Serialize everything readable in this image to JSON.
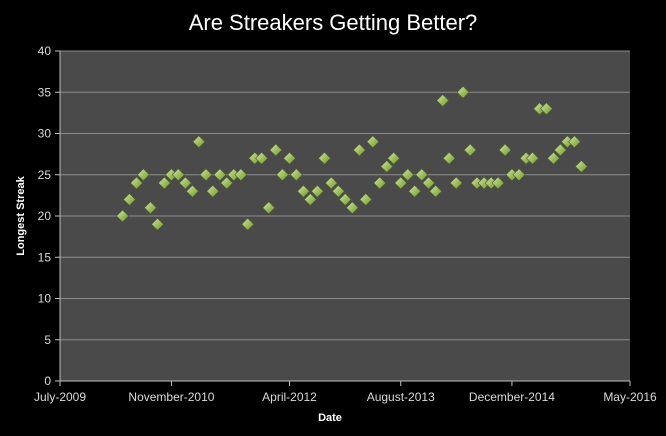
{
  "chart_data": {
    "type": "scatter",
    "title": "Are Streakers Getting Better?",
    "xlabel": "Date",
    "ylabel": "Longest Streak",
    "ylim": [
      0,
      40
    ],
    "yticks": [
      "0",
      "5",
      "10",
      "15",
      "20",
      "25",
      "30",
      "35",
      "40"
    ],
    "xlim": [
      "2009-07-01",
      "2016-05-01"
    ],
    "xticks": [
      {
        "date": "2009-07-01",
        "label": "July-2009"
      },
      {
        "date": "2010-11-01",
        "label": "November-2010"
      },
      {
        "date": "2012-04-01",
        "label": "April-2012"
      },
      {
        "date": "2013-08-01",
        "label": "August-2013"
      },
      {
        "date": "2014-12-01",
        "label": "December-2014"
      },
      {
        "date": "2016-05-01",
        "label": "May-2016"
      }
    ],
    "grid": true,
    "legend": false,
    "colors": {
      "background": "#000000",
      "plot_area": "#4a4a4a",
      "gridline": "#8c8c8c",
      "marker_fill": "#9bbb59",
      "marker_highlight": "#d7e4bd",
      "marker_edge": "#4f6228",
      "text": "#ffffff",
      "tick_text": "#d9d9d9"
    },
    "points": [
      {
        "x": "2010-04-01",
        "y": 20
      },
      {
        "x": "2010-05-01",
        "y": 22
      },
      {
        "x": "2010-06-01",
        "y": 24
      },
      {
        "x": "2010-07-01",
        "y": 25
      },
      {
        "x": "2010-08-01",
        "y": 21
      },
      {
        "x": "2010-09-01",
        "y": 19
      },
      {
        "x": "2010-10-01",
        "y": 24
      },
      {
        "x": "2010-11-01",
        "y": 25
      },
      {
        "x": "2010-12-01",
        "y": 25
      },
      {
        "x": "2011-01-01",
        "y": 24
      },
      {
        "x": "2011-02-01",
        "y": 23
      },
      {
        "x": "2011-03-01",
        "y": 29
      },
      {
        "x": "2011-04-01",
        "y": 25
      },
      {
        "x": "2011-05-01",
        "y": 23
      },
      {
        "x": "2011-06-01",
        "y": 25
      },
      {
        "x": "2011-07-01",
        "y": 24
      },
      {
        "x": "2011-08-01",
        "y": 25
      },
      {
        "x": "2011-09-01",
        "y": 25
      },
      {
        "x": "2011-10-01",
        "y": 19
      },
      {
        "x": "2011-11-01",
        "y": 27
      },
      {
        "x": "2011-12-01",
        "y": 27
      },
      {
        "x": "2012-01-01",
        "y": 21
      },
      {
        "x": "2012-02-01",
        "y": 28
      },
      {
        "x": "2012-03-01",
        "y": 25
      },
      {
        "x": "2012-04-01",
        "y": 27
      },
      {
        "x": "2012-05-01",
        "y": 25
      },
      {
        "x": "2012-06-01",
        "y": 23
      },
      {
        "x": "2012-07-01",
        "y": 22
      },
      {
        "x": "2012-08-01",
        "y": 23
      },
      {
        "x": "2012-09-01",
        "y": 27
      },
      {
        "x": "2012-10-01",
        "y": 24
      },
      {
        "x": "2012-11-01",
        "y": 23
      },
      {
        "x": "2012-12-01",
        "y": 22
      },
      {
        "x": "2013-01-01",
        "y": 21
      },
      {
        "x": "2013-02-01",
        "y": 28
      },
      {
        "x": "2013-03-01",
        "y": 22
      },
      {
        "x": "2013-04-01",
        "y": 29
      },
      {
        "x": "2013-05-01",
        "y": 24
      },
      {
        "x": "2013-06-01",
        "y": 26
      },
      {
        "x": "2013-07-01",
        "y": 27
      },
      {
        "x": "2013-08-01",
        "y": 24
      },
      {
        "x": "2013-09-01",
        "y": 25
      },
      {
        "x": "2013-10-01",
        "y": 23
      },
      {
        "x": "2013-11-01",
        "y": 25
      },
      {
        "x": "2013-12-01",
        "y": 24
      },
      {
        "x": "2014-01-01",
        "y": 23
      },
      {
        "x": "2014-02-01",
        "y": 34
      },
      {
        "x": "2014-03-01",
        "y": 27
      },
      {
        "x": "2014-04-01",
        "y": 24
      },
      {
        "x": "2014-05-01",
        "y": 35
      },
      {
        "x": "2014-06-01",
        "y": 28
      },
      {
        "x": "2014-07-01",
        "y": 24
      },
      {
        "x": "2014-08-01",
        "y": 24
      },
      {
        "x": "2014-09-01",
        "y": 24
      },
      {
        "x": "2014-10-01",
        "y": 24
      },
      {
        "x": "2014-11-01",
        "y": 28
      },
      {
        "x": "2014-12-01",
        "y": 25
      },
      {
        "x": "2015-01-01",
        "y": 25
      },
      {
        "x": "2015-02-01",
        "y": 27
      },
      {
        "x": "2015-03-01",
        "y": 27
      },
      {
        "x": "2015-04-01",
        "y": 33
      },
      {
        "x": "2015-05-01",
        "y": 33
      },
      {
        "x": "2015-06-01",
        "y": 27
      },
      {
        "x": "2015-07-01",
        "y": 28
      },
      {
        "x": "2015-08-01",
        "y": 29
      },
      {
        "x": "2015-09-01",
        "y": 29
      },
      {
        "x": "2015-10-01",
        "y": 26
      }
    ]
  }
}
